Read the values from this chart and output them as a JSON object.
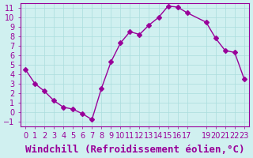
{
  "x": [
    0,
    1,
    2,
    3,
    4,
    5,
    6,
    7,
    8,
    9,
    10,
    11,
    12,
    13,
    14,
    15,
    16,
    17,
    19,
    20,
    21,
    22,
    23
  ],
  "y": [
    4.5,
    3.0,
    2.2,
    1.2,
    0.5,
    0.3,
    -0.2,
    -0.8,
    2.5,
    5.3,
    7.3,
    8.5,
    8.2,
    9.2,
    10.0,
    11.2,
    11.1,
    10.5,
    9.5,
    7.8,
    6.5,
    6.3,
    3.5
  ],
  "line_color": "#990099",
  "marker": "D",
  "marker_size": 3,
  "bg_color": "#d0f0f0",
  "grid_color": "#aadddd",
  "xlabel": "Windchill (Refroidissement éolien,°C)",
  "xlabel_fontsize": 9,
  "xlim": [
    -0.5,
    23.5
  ],
  "ylim": [
    -1.5,
    11.5
  ],
  "yticks": [
    -1,
    0,
    1,
    2,
    3,
    4,
    5,
    6,
    7,
    8,
    9,
    10,
    11
  ],
  "xticks": [
    0,
    1,
    2,
    3,
    4,
    5,
    6,
    7,
    8,
    9,
    10,
    11,
    12,
    13,
    14,
    15,
    16,
    17,
    19,
    20,
    21,
    22,
    23
  ],
  "tick_fontsize": 7,
  "tick_color": "#990099",
  "spine_color": "#990099"
}
